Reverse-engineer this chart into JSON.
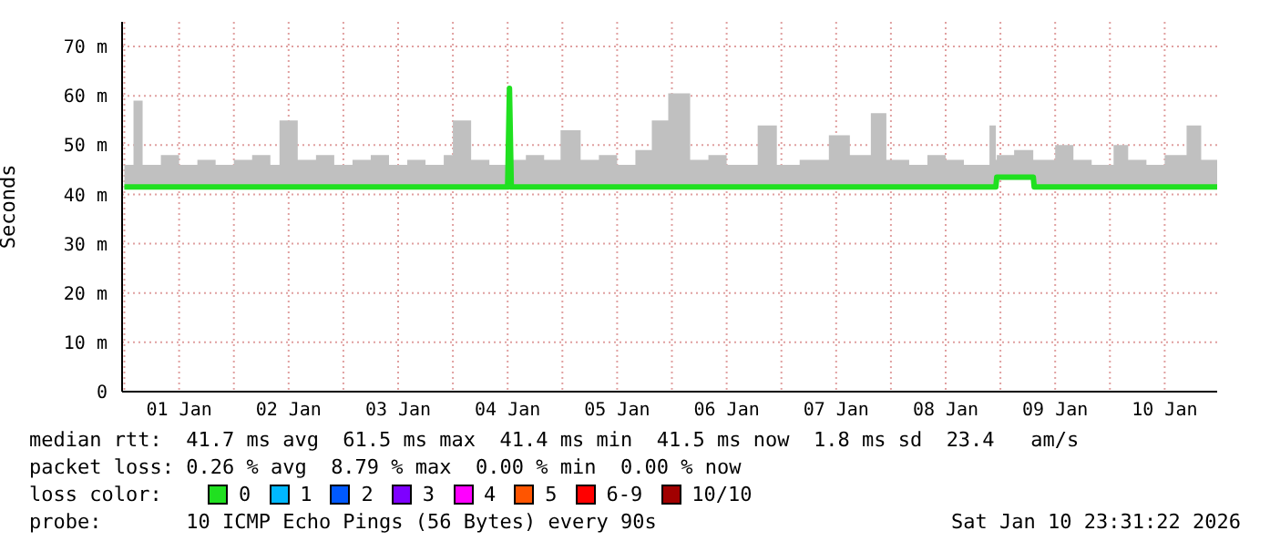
{
  "chart_data": {
    "type": "line",
    "ylabel": "Seconds",
    "legend_title": "loss color:",
    "legend": "bottom",
    "grid": true,
    "marker": "none",
    "line_style": "solid",
    "annotations": [
      "median rtt:  41.7 ms avg  61.5 ms max  41.4 ms min  41.5 ms now  1.8 ms sd  23.4   am/s",
      "packet loss: 0.26 % avg  8.79 % max  0.00 % min  0.00 % now",
      "probe:       10 ICMP Echo Pings (56 Bytes) every 90s",
      "Sat Jan 10 23:31:22 2026"
    ],
    "xlim": [
      "2025-12-31T23:30",
      "2026-01-10T23:30"
    ],
    "xticks": [
      {
        "value": "2026-01-01T00:00",
        "label": null
      },
      {
        "value": "2026-01-01T12:00",
        "label": "01 Jan"
      },
      {
        "value": "2026-01-02T00:00",
        "label": null
      },
      {
        "value": "2026-01-02T12:00",
        "label": "02 Jan"
      },
      {
        "value": "2026-01-03T00:00",
        "label": null
      },
      {
        "value": "2026-01-03T12:00",
        "label": "03 Jan"
      },
      {
        "value": "2026-01-04T00:00",
        "label": null
      },
      {
        "value": "2026-01-04T12:00",
        "label": "04 Jan"
      },
      {
        "value": "2026-01-05T00:00",
        "label": null
      },
      {
        "value": "2026-01-05T12:00",
        "label": "05 Jan"
      },
      {
        "value": "2026-01-06T00:00",
        "label": null
      },
      {
        "value": "2026-01-06T12:00",
        "label": "06 Jan"
      },
      {
        "value": "2026-01-07T00:00",
        "label": null
      },
      {
        "value": "2026-01-07T12:00",
        "label": "07 Jan"
      },
      {
        "value": "2026-01-08T00:00",
        "label": null
      },
      {
        "value": "2026-01-08T12:00",
        "label": "08 Jan"
      },
      {
        "value": "2026-01-09T00:00",
        "label": null
      },
      {
        "value": "2026-01-09T12:00",
        "label": "09 Jan"
      },
      {
        "value": "2026-01-10T00:00",
        "label": null
      },
      {
        "value": "2026-01-10T12:00",
        "label": "10 Jan"
      }
    ],
    "ylim": [
      0,
      75
    ],
    "yticks": [
      0,
      {
        "value": 10,
        "label": "10 m"
      },
      {
        "value": 20,
        "label": "20 m"
      },
      {
        "value": 30,
        "label": "30 m"
      },
      {
        "value": 40,
        "label": "40 m"
      },
      {
        "value": 50,
        "label": "50 m"
      },
      {
        "value": 60,
        "label": "60 m"
      },
      {
        "value": 70,
        "label": "70 m"
      }
    ],
    "x": [
      "2026-01-01T00:00",
      "2026-01-01T02:00",
      "2026-01-01T04:00",
      "2026-01-01T08:00",
      "2026-01-01T12:00",
      "2026-01-01T16:00",
      "2026-01-01T20:00",
      "2026-01-02T00:00",
      "2026-01-02T04:00",
      "2026-01-02T08:00",
      "2026-01-02T10:00",
      "2026-01-02T14:00",
      "2026-01-02T18:00",
      "2026-01-02T22:00",
      "2026-01-03T02:00",
      "2026-01-03T06:00",
      "2026-01-03T10:00",
      "2026-01-03T14:00",
      "2026-01-03T18:00",
      "2026-01-03T22:00",
      "2026-01-04T00:00",
      "2026-01-04T04:00",
      "2026-01-04T08:00",
      "2026-01-04T12:00",
      "2026-01-04T12:24",
      "2026-01-04T12:48",
      "2026-01-04T16:00",
      "2026-01-04T20:00",
      "2026-01-04T23:36",
      "2026-01-05T04:00",
      "2026-01-05T08:00",
      "2026-01-05T12:00",
      "2026-01-05T16:00",
      "2026-01-05T19:36",
      "2026-01-05T23:12",
      "2026-01-06T04:00",
      "2026-01-06T08:00",
      "2026-01-06T12:00",
      "2026-01-06T18:48",
      "2026-01-06T23:00",
      "2026-01-07T04:00",
      "2026-01-07T10:24",
      "2026-01-07T15:00",
      "2026-01-07T19:36",
      "2026-01-07T23:00",
      "2026-01-08T04:00",
      "2026-01-08T08:00",
      "2026-01-08T12:00",
      "2026-01-08T16:00",
      "2026-01-08T21:36",
      "2026-01-08T23:00",
      "2026-01-08T23:12",
      "2026-01-09T03:00",
      "2026-01-09T07:12",
      "2026-01-09T07:24",
      "2026-01-09T12:00",
      "2026-01-09T16:00",
      "2026-01-09T20:00",
      "2026-01-10T00:48",
      "2026-01-10T04:00",
      "2026-01-10T08:00",
      "2026-01-10T12:00",
      "2026-01-10T16:48",
      "2026-01-10T20:00",
      "2026-01-10T23:30"
    ],
    "series": [
      {
        "name": "0",
        "color": "#20e020",
        "values": [
          41.5,
          41.5,
          41.5,
          41.5,
          41.5,
          41.5,
          41.5,
          41.5,
          41.5,
          41.5,
          41.5,
          41.5,
          41.5,
          41.5,
          41.5,
          41.5,
          41.5,
          41.5,
          41.5,
          41.5,
          41.5,
          41.5,
          41.5,
          41.5,
          61.5,
          41.5,
          41.5,
          41.5,
          41.5,
          41.5,
          41.5,
          41.5,
          41.5,
          41.5,
          41.5,
          41.5,
          41.5,
          41.5,
          41.5,
          41.5,
          41.5,
          41.5,
          41.5,
          41.5,
          41.5,
          41.5,
          41.5,
          41.5,
          41.5,
          41.5,
          41.5,
          43.5,
          43.5,
          43.5,
          41.5,
          41.5,
          41.5,
          41.5,
          41.5,
          41.5,
          41.5,
          41.5,
          41.5,
          41.5,
          41.5
        ],
        "lower": [
          41,
          41,
          41,
          41,
          41,
          41,
          41,
          41,
          41,
          41,
          41,
          41,
          41,
          41,
          41,
          41,
          41,
          41,
          41,
          41,
          41,
          41,
          41,
          41,
          41,
          41,
          41,
          41,
          41,
          41,
          41,
          41,
          41,
          41,
          41,
          41,
          41,
          41,
          41,
          41,
          41,
          41,
          41,
          41,
          41,
          41,
          41,
          41,
          41,
          41,
          41,
          43,
          43,
          43,
          41,
          41,
          41,
          41,
          41,
          41,
          41,
          41,
          41,
          41,
          41
        ],
        "upper": [
          46,
          59,
          46,
          48,
          46,
          47,
          46,
          47,
          48,
          46,
          55,
          47,
          48,
          46,
          47,
          48,
          46,
          47,
          46,
          48,
          55,
          47,
          46,
          48,
          61.5,
          47,
          48,
          47,
          53,
          47,
          48,
          46,
          49,
          55,
          60.5,
          47,
          48,
          46,
          54,
          46,
          47,
          52,
          48,
          56.5,
          47,
          46,
          48,
          47,
          46,
          54,
          47,
          48,
          49,
          47,
          47,
          50,
          47,
          46,
          50,
          47,
          46,
          48,
          54,
          47,
          47
        ]
      },
      {
        "name": "1",
        "color": "#00b8ff",
        "values": [
          null,
          null,
          null,
          null,
          null,
          null,
          null,
          null,
          null,
          null,
          null,
          null,
          null,
          null,
          null,
          null,
          null,
          null,
          null,
          null,
          null,
          null,
          null,
          null,
          null,
          null,
          null,
          null,
          null,
          null,
          null,
          null,
          null,
          null,
          null,
          null,
          null,
          null,
          null,
          null,
          null,
          null,
          null,
          null,
          null,
          null,
          null,
          null,
          null,
          null,
          null,
          null,
          null,
          null,
          null,
          null,
          null,
          null,
          null,
          null,
          null,
          null,
          null,
          null,
          null
        ]
      },
      {
        "name": "2",
        "color": "#0059ff",
        "values": [
          null,
          null,
          null,
          null,
          null,
          null,
          null,
          null,
          null,
          null,
          null,
          null,
          null,
          null,
          null,
          null,
          null,
          null,
          null,
          null,
          null,
          null,
          null,
          null,
          null,
          null,
          null,
          null,
          null,
          null,
          null,
          null,
          null,
          null,
          null,
          null,
          null,
          null,
          null,
          null,
          null,
          null,
          null,
          null,
          null,
          null,
          null,
          null,
          null,
          null,
          null,
          null,
          null,
          null,
          null,
          null,
          null,
          null,
          null,
          null,
          null,
          null,
          null,
          null,
          null
        ]
      },
      {
        "name": "3",
        "color": "#7e00ff",
        "values": [
          null,
          null,
          null,
          null,
          null,
          null,
          null,
          null,
          null,
          null,
          null,
          null,
          null,
          null,
          null,
          null,
          null,
          null,
          null,
          null,
          null,
          null,
          null,
          null,
          null,
          null,
          null,
          null,
          null,
          null,
          null,
          null,
          null,
          null,
          null,
          null,
          null,
          null,
          null,
          null,
          null,
          null,
          null,
          null,
          null,
          null,
          null,
          null,
          null,
          null,
          null,
          null,
          null,
          null,
          null,
          null,
          null,
          null,
          null,
          null,
          null,
          null,
          null,
          null,
          null
        ]
      },
      {
        "name": "4",
        "color": "#ff00ff",
        "values": [
          null,
          null,
          null,
          null,
          null,
          null,
          null,
          null,
          null,
          null,
          null,
          null,
          null,
          null,
          null,
          null,
          null,
          null,
          null,
          null,
          null,
          null,
          null,
          null,
          null,
          null,
          null,
          null,
          null,
          null,
          null,
          null,
          null,
          null,
          null,
          null,
          null,
          null,
          null,
          null,
          null,
          null,
          null,
          null,
          null,
          null,
          null,
          null,
          null,
          null,
          null,
          null,
          null,
          null,
          null,
          null,
          null,
          null,
          null,
          null,
          null,
          null,
          null,
          null,
          null
        ]
      },
      {
        "name": "5",
        "color": "#ff5500",
        "values": [
          null,
          null,
          null,
          null,
          null,
          null,
          null,
          null,
          null,
          null,
          null,
          null,
          null,
          null,
          null,
          null,
          null,
          null,
          null,
          null,
          null,
          null,
          null,
          null,
          null,
          null,
          null,
          null,
          null,
          null,
          null,
          null,
          null,
          null,
          null,
          null,
          null,
          null,
          null,
          null,
          null,
          null,
          null,
          null,
          null,
          null,
          null,
          null,
          null,
          null,
          null,
          null,
          null,
          null,
          null,
          null,
          null,
          null,
          null,
          null,
          null,
          null,
          null,
          null,
          null
        ]
      },
      {
        "name": "6-9",
        "color": "#ff0000",
        "values": [
          null,
          null,
          null,
          null,
          null,
          null,
          null,
          null,
          null,
          null,
          null,
          null,
          null,
          null,
          null,
          null,
          null,
          null,
          null,
          null,
          null,
          null,
          null,
          null,
          null,
          null,
          null,
          null,
          null,
          null,
          null,
          null,
          null,
          null,
          null,
          null,
          null,
          null,
          null,
          null,
          null,
          null,
          null,
          null,
          null,
          null,
          null,
          null,
          null,
          null,
          null,
          null,
          null,
          null,
          null,
          null,
          null,
          null,
          null,
          null,
          null,
          null,
          null,
          null,
          null
        ]
      },
      {
        "name": "10/10",
        "color": "#a10000",
        "values": [
          null,
          null,
          null,
          null,
          null,
          null,
          null,
          null,
          null,
          null,
          null,
          null,
          null,
          null,
          null,
          null,
          null,
          null,
          null,
          null,
          null,
          null,
          null,
          null,
          null,
          null,
          null,
          null,
          null,
          null,
          null,
          null,
          null,
          null,
          null,
          null,
          null,
          null,
          null,
          null,
          null,
          null,
          null,
          null,
          null,
          null,
          null,
          null,
          null,
          null,
          null,
          null,
          null,
          null,
          null,
          null,
          null,
          null,
          null,
          null,
          null,
          null,
          null,
          null,
          null
        ]
      }
    ]
  }
}
